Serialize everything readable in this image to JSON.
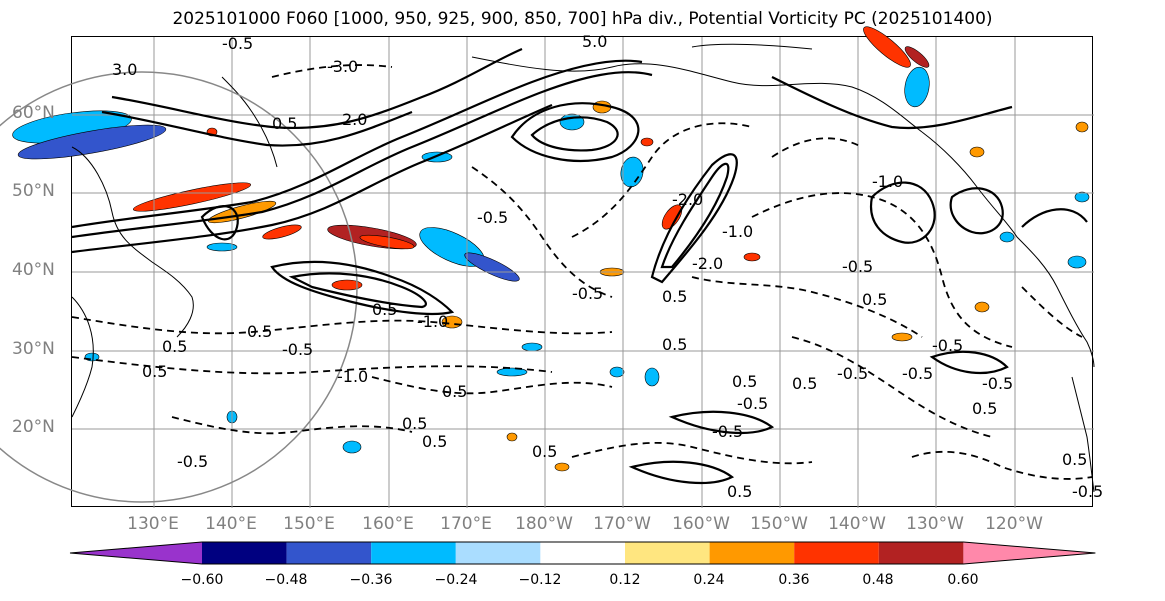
{
  "title": "2025101000 F060 [1000, 950, 925, 900, 850, 700] hPa div., Potential Vorticity PC (2025101400)",
  "map": {
    "region": "North Pacific",
    "lat_labels": [
      "60°N",
      "50°N",
      "40°N",
      "30°N",
      "20°N"
    ],
    "lon_labels": [
      "130°E",
      "140°E",
      "150°E",
      "160°E",
      "170°E",
      "180°W",
      "170°W",
      "160°W",
      "150°W",
      "140°W",
      "130°W",
      "120°W"
    ],
    "contour_labels": [
      "-0.5",
      "3.0",
      "-3.0",
      "5.0",
      "2.0",
      "0.5",
      "-1.0",
      "0.5",
      "-0.5",
      "-2.0",
      "0.5",
      "-1.0",
      "0.5",
      "-0.5",
      "0.5",
      "0.5",
      "-1.0",
      "0.5",
      "-1.0",
      "-0.5",
      "0.5",
      "0.5",
      "0.5",
      "0.5",
      "-0.5",
      "-0.5",
      "-0.5",
      "-0.5",
      "0.5",
      "-0.5",
      "-0.5",
      "0.5",
      "-0.5",
      "0.5",
      "-2.0",
      "-0.5",
      "0.5",
      "0.5",
      "0.5",
      "-0.5"
    ]
  },
  "colorbar": {
    "ticks": [
      "−0.60",
      "−0.48",
      "−0.36",
      "−0.24",
      "−0.12",
      "0.12",
      "0.24",
      "0.36",
      "0.48",
      "0.60"
    ],
    "colors": [
      "#9933cc",
      "#000080",
      "#3355cc",
      "#00bbff",
      "#aaddff",
      "#ffffff",
      "#ffe680",
      "#ff9900",
      "#ff3300",
      "#b22222",
      "#ff88aa"
    ]
  }
}
